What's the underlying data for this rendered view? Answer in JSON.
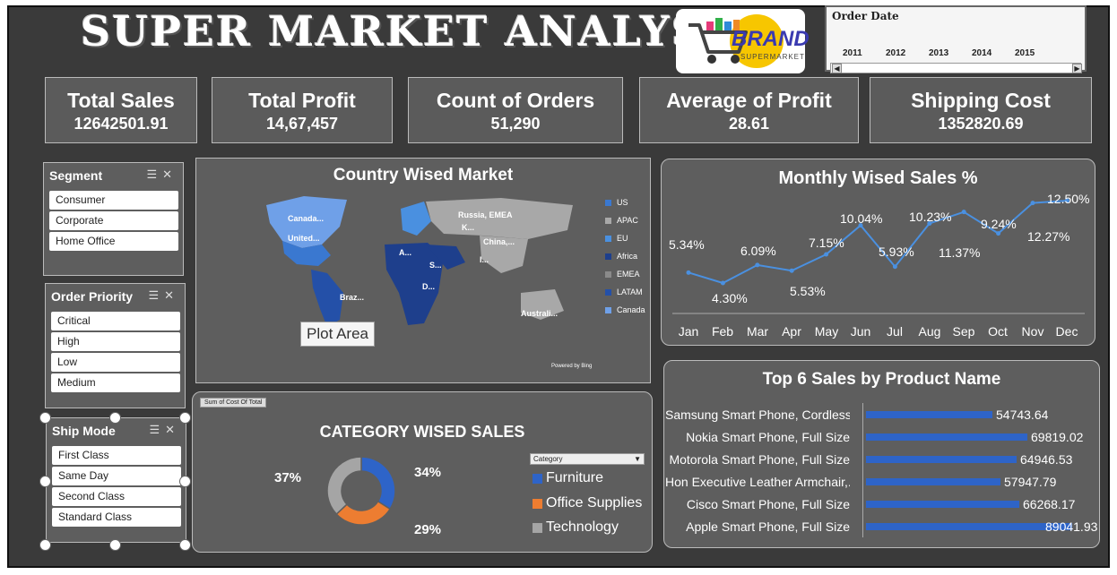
{
  "header": {
    "title": "SUPER MARKET ANALYSIS",
    "logo_text": "BRAND",
    "logo_sub": "SUPERMARKET"
  },
  "timeline": {
    "title": "Order Date",
    "years": [
      "2011",
      "2012",
      "2013",
      "2014",
      "2015"
    ]
  },
  "kpis": [
    {
      "title": "Total Sales",
      "value": "12642501.91"
    },
    {
      "title": "Total Profit",
      "value": "14,67,457"
    },
    {
      "title": "Count of Orders",
      "value": "51,290"
    },
    {
      "title": "Average of Profit",
      "value": "28.61"
    },
    {
      "title": "Shipping Cost",
      "value": "1352820.69"
    }
  ],
  "slicers": {
    "segment": {
      "title": "Segment",
      "items": [
        "Consumer",
        "Corporate",
        "Home Office"
      ]
    },
    "order_priority": {
      "title": "Order Priority",
      "items": [
        "Critical",
        "High",
        "Low",
        "Medium"
      ]
    },
    "ship_mode": {
      "title": "Ship Mode",
      "items": [
        "First Class",
        "Same Day",
        "Second Class",
        "Standard Class"
      ]
    }
  },
  "map": {
    "title": "Country Wised Market",
    "tooltip": "Plot Area",
    "credit": "Powered by Bing",
    "labels": [
      "Canada...",
      "United...",
      "Russia, EMEA",
      "K...",
      "China,...",
      "A...",
      "S...",
      "D...",
      "I...",
      "Braz...",
      "Australi..."
    ],
    "legend": [
      {
        "name": "US",
        "color": "#3a78d0"
      },
      {
        "name": "APAC",
        "color": "#a8a8a8"
      },
      {
        "name": "EU",
        "color": "#4a90e0"
      },
      {
        "name": "Africa",
        "color": "#1e3f8c"
      },
      {
        "name": "EMEA",
        "color": "#8a8a8a"
      },
      {
        "name": "LATAM",
        "color": "#2450a8"
      },
      {
        "name": "Canada",
        "color": "#6fa0e8"
      }
    ]
  },
  "monthly": {
    "title": "Monthly Wised Sales %",
    "months": [
      "Jan",
      "Feb",
      "Mar",
      "Apr",
      "May",
      "Jun",
      "Jul",
      "Aug",
      "Sep",
      "Oct",
      "Nov",
      "Dec"
    ],
    "labels": [
      "5.34%",
      "4.30%",
      "6.09%",
      "5.53%",
      "7.15%",
      "10.04%",
      "5.93%",
      "10.23%",
      "11.37%",
      "9.24%",
      "12.27%",
      "12.50%"
    ],
    "chart_data": {
      "type": "line",
      "title": "Monthly Wised Sales %",
      "categories": [
        "Jan",
        "Feb",
        "Mar",
        "Apr",
        "May",
        "Jun",
        "Jul",
        "Aug",
        "Sep",
        "Oct",
        "Nov",
        "Dec"
      ],
      "values": [
        5.34,
        4.3,
        6.09,
        5.53,
        7.15,
        10.04,
        5.93,
        10.23,
        11.37,
        9.24,
        12.27,
        12.5
      ],
      "color": "#4a90e0"
    }
  },
  "category": {
    "title": "CATEGORY WISED SALES",
    "field_button": "Sum of Cost Of Total",
    "filter_label": "Category",
    "chart_data": {
      "type": "pie",
      "title": "CATEGORY WISED SALES",
      "categories": [
        "Furniture",
        "Office Supplies",
        "Technology"
      ],
      "values": [
        34,
        29,
        37
      ],
      "labels": [
        "34%",
        "29%",
        "37%"
      ],
      "colors": [
        "#2e64c8",
        "#ed7d31",
        "#a5a5a5"
      ]
    }
  },
  "top_products": {
    "title": "Top 6 Sales by Product Name",
    "chart_data": {
      "type": "bar",
      "title": "Top 6 Sales by Product Name",
      "categories": [
        "Samsung Smart Phone, Cordless",
        "Nokia Smart Phone, Full Size",
        "Motorola Smart Phone, Full Size",
        "Hon Executive Leather Armchair,...",
        "Cisco Smart Phone, Full Size",
        "Apple Smart Phone, Full Size"
      ],
      "values": [
        54743.64,
        69819.02,
        64946.53,
        57947.79,
        66268.17,
        89041.93
      ],
      "labels": [
        "54743.64",
        "69819.02",
        "64946.53",
        "57947.79",
        "66268.17",
        "89041.93"
      ],
      "color": "#2e64c8"
    }
  }
}
